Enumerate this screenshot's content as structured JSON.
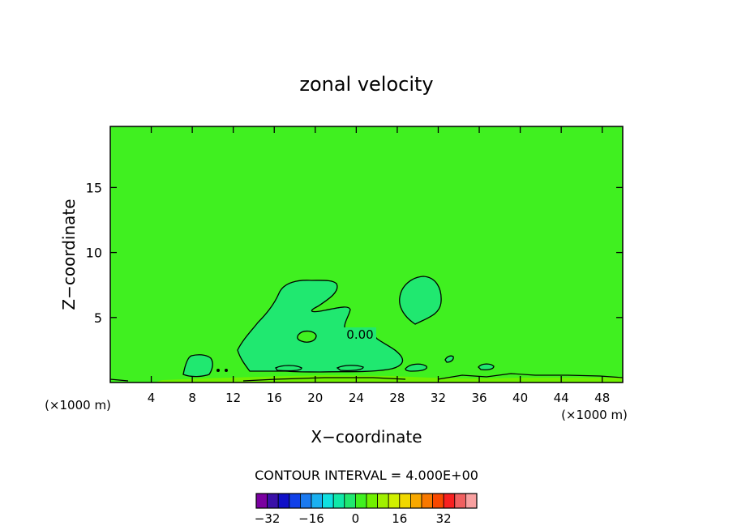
{
  "chart_data": {
    "type": "contour",
    "title": "zonal velocity",
    "xlabel": "X−coordinate",
    "ylabel": "Z−coordinate",
    "x_unit_left": "(×1000 m)",
    "x_unit_right": "(×1000 m)",
    "xlim": [
      0,
      50
    ],
    "ylim": [
      0,
      19.7
    ],
    "x_ticks": [
      4,
      8,
      12,
      16,
      20,
      24,
      28,
      32,
      36,
      40,
      44,
      48
    ],
    "y_ticks": [
      5,
      10,
      15
    ],
    "contour_label": "0.00",
    "contour_interval_text": "CONTOUR INTERVAL = 4.000E+00",
    "colorbar": {
      "tick_labels": [
        "−32",
        "−16",
        "0",
        "16",
        "32"
      ],
      "tick_values": [
        -32,
        -16,
        0,
        16,
        32
      ],
      "levels": [
        -36,
        -32,
        -28,
        -24,
        -20,
        -16,
        -12,
        -8,
        -4,
        0,
        4,
        8,
        12,
        16,
        20,
        24,
        28,
        32,
        36,
        40
      ],
      "colors": [
        "#7a00a0",
        "#3a10a8",
        "#1010c8",
        "#1040e8",
        "#1a7af0",
        "#1ab0f0",
        "#10e0e0",
        "#10e8a8",
        "#20e870",
        "#40f020",
        "#70f000",
        "#a0f000",
        "#d0f000",
        "#f0d800",
        "#f8a800",
        "#f87800",
        "#f84800",
        "#f82020",
        "#f06060",
        "#f8a0a0"
      ]
    },
    "fields": {
      "background_color": "#40f020",
      "negative_region_color": "#20e870",
      "surface_band_color": "#70f000"
    }
  }
}
